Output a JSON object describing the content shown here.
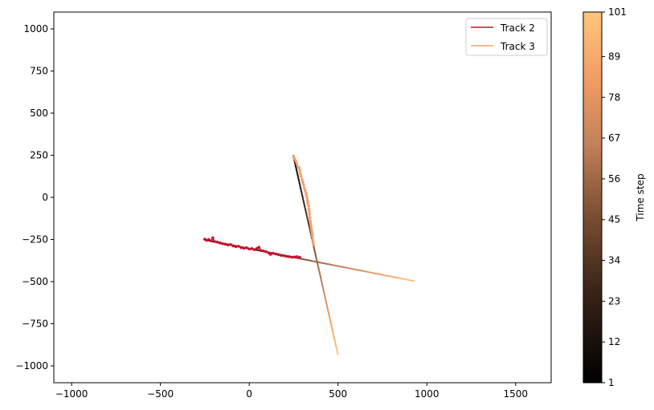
{
  "chart_data": {
    "type": "line",
    "title": "",
    "xlabel": "",
    "ylabel": "",
    "xlim": [
      -1100,
      1700
    ],
    "ylim": [
      -1100,
      1100
    ],
    "xticks": [
      -1000,
      -500,
      0,
      500,
      1000,
      1500
    ],
    "yticks": [
      -1000,
      -750,
      -500,
      -250,
      0,
      250,
      500,
      750,
      1000
    ],
    "grid": false,
    "legend": {
      "placement": "top-right",
      "entries": [
        "Track 2",
        "Track 3"
      ]
    },
    "series": [
      {
        "name": "Track 2",
        "color": "#c8102e",
        "observations": [
          [
            -250,
            -248
          ],
          [
            -240,
            -255
          ],
          [
            -228,
            -250
          ],
          [
            -215,
            -258
          ],
          [
            -205,
            -240
          ],
          [
            -195,
            -262
          ],
          [
            -180,
            -265
          ],
          [
            -165,
            -270
          ],
          [
            -150,
            -275
          ],
          [
            -135,
            -278
          ],
          [
            -120,
            -282
          ],
          [
            -105,
            -280
          ],
          [
            -90,
            -288
          ],
          [
            -75,
            -292
          ],
          [
            -60,
            -290
          ],
          [
            -45,
            -298
          ],
          [
            -30,
            -302
          ],
          [
            -15,
            -299
          ],
          [
            0,
            -306
          ],
          [
            15,
            -304
          ],
          [
            30,
            -310
          ],
          [
            45,
            -302
          ],
          [
            55,
            -296
          ],
          [
            65,
            -315
          ],
          [
            80,
            -318
          ],
          [
            95,
            -322
          ],
          [
            110,
            -330
          ],
          [
            120,
            -338
          ],
          [
            135,
            -332
          ],
          [
            150,
            -336
          ],
          [
            165,
            -340
          ],
          [
            180,
            -344
          ],
          [
            195,
            -346
          ],
          [
            210,
            -350
          ],
          [
            225,
            -352
          ],
          [
            240,
            -355
          ],
          [
            255,
            -354
          ],
          [
            270,
            -352
          ],
          [
            285,
            -356
          ]
        ],
        "prediction": {
          "x": [
            -250,
            930
          ],
          "y": [
            -252,
            -497
          ]
        }
      },
      {
        "name": "Track 3",
        "color": "#f0a070",
        "observations": [
          [
            250,
            245
          ],
          [
            255,
            230
          ],
          [
            262,
            215
          ],
          [
            268,
            200
          ],
          [
            275,
            180
          ],
          [
            280,
            175
          ],
          [
            285,
            160
          ],
          [
            288,
            140
          ],
          [
            292,
            125
          ],
          [
            298,
            105
          ],
          [
            302,
            90
          ],
          [
            306,
            75
          ],
          [
            310,
            55
          ],
          [
            315,
            40
          ],
          [
            320,
            25
          ],
          [
            322,
            10
          ],
          [
            326,
            -5
          ],
          [
            328,
            -20
          ],
          [
            330,
            -35
          ],
          [
            334,
            -50
          ],
          [
            336,
            -70
          ],
          [
            338,
            -85
          ],
          [
            340,
            -100
          ],
          [
            342,
            -120
          ],
          [
            344,
            -140
          ],
          [
            346,
            -155
          ],
          [
            348,
            -170
          ],
          [
            350,
            -185
          ],
          [
            352,
            -200
          ],
          [
            354,
            -215
          ],
          [
            356,
            -230
          ],
          [
            358,
            -250
          ],
          [
            360,
            -265
          ],
          [
            362,
            -280
          ]
        ],
        "prediction": {
          "x": [
            250,
            500
          ],
          "y": [
            240,
            -935
          ]
        }
      }
    ],
    "colorbar": {
      "label": "Time step",
      "range": [
        1,
        101
      ],
      "ticks": [
        1,
        12,
        23,
        34,
        45,
        56,
        67,
        78,
        89,
        101
      ]
    }
  }
}
